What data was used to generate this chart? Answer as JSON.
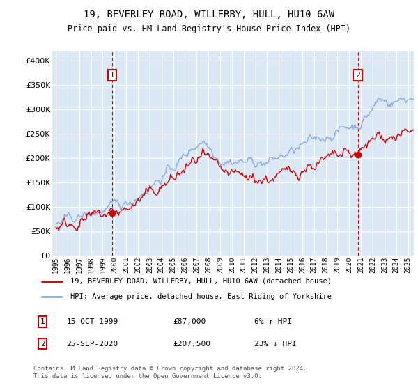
{
  "title": "19, BEVERLEY ROAD, WILLERBY, HULL, HU10 6AW",
  "subtitle": "Price paid vs. HM Land Registry's House Price Index (HPI)",
  "background_color": "#dce8f5",
  "sale1_date": "15-OCT-1999",
  "sale1_price": 87000,
  "sale1_label": "6% ↑ HPI",
  "sale1_x": 1999.79,
  "sale2_date": "25-SEP-2020",
  "sale2_price": 207500,
  "sale2_label": "23% ↓ HPI",
  "sale2_x": 2020.73,
  "legend_entry1": "19, BEVERLEY ROAD, WILLERBY, HULL, HU10 6AW (detached house)",
  "legend_entry2": "HPI: Average price, detached house, East Riding of Yorkshire",
  "footer": "Contains HM Land Registry data © Crown copyright and database right 2024.\nThis data is licensed under the Open Government Licence v3.0.",
  "sale_color": "#cc0000",
  "hpi_color": "#88aadd",
  "vline_color": "#cc0000",
  "ylim": [
    0,
    420000
  ],
  "yticks": [
    0,
    50000,
    100000,
    150000,
    200000,
    250000,
    300000,
    350000,
    400000
  ],
  "xmin": 1994.7,
  "xmax": 2025.5
}
